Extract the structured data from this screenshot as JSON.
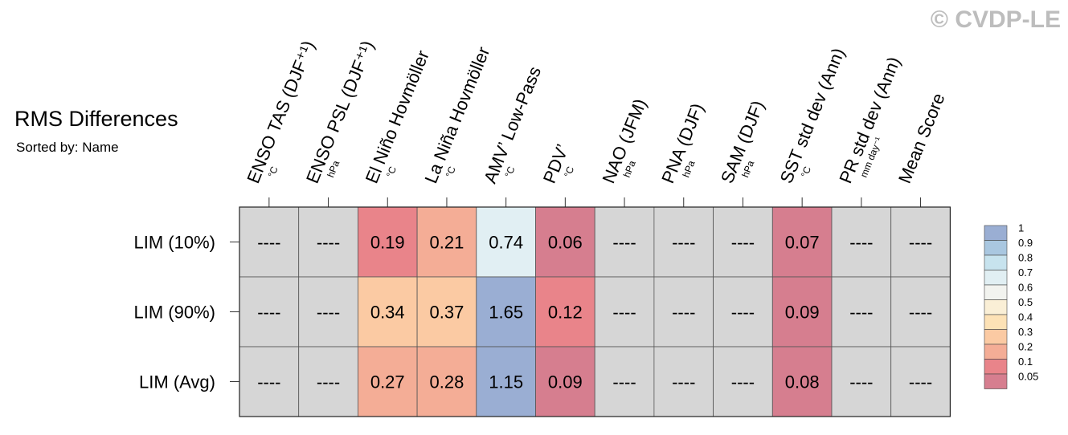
{
  "watermark": "© CVDP-LE",
  "chart_data": {
    "type": "heatmap",
    "title": "RMS Differences",
    "subtitle": "Sorted by: Name",
    "columns": [
      {
        "name": "ENSO TAS (DJF⁺¹)",
        "unit": "°C"
      },
      {
        "name": "ENSO PSL (DJF⁺¹)",
        "unit": "hPa"
      },
      {
        "name": "El Niño Hovmöller",
        "unit": "°C"
      },
      {
        "name": "La Niña Hovmöller",
        "unit": "°C"
      },
      {
        "name": "AMV’ Low-Pass",
        "unit": "°C"
      },
      {
        "name": "PDV’",
        "unit": "°C"
      },
      {
        "name": "NAO (JFM)",
        "unit": "hPa"
      },
      {
        "name": "PNA (DJF)",
        "unit": "hPa"
      },
      {
        "name": "SAM (DJF)",
        "unit": "hPa"
      },
      {
        "name": "SST std dev (Ann)",
        "unit": "°C"
      },
      {
        "name": "PR std dev (Ann)",
        "unit": "mm day⁻¹"
      },
      {
        "name": "Mean Score",
        "unit": ""
      }
    ],
    "rows": [
      "LIM (10%)",
      "LIM (90%)",
      "LIM (Avg)"
    ],
    "values": [
      [
        null,
        null,
        0.19,
        0.21,
        0.74,
        0.06,
        null,
        null,
        null,
        0.07,
        null,
        null
      ],
      [
        null,
        null,
        0.34,
        0.37,
        1.65,
        0.12,
        null,
        null,
        null,
        0.09,
        null,
        null
      ],
      [
        null,
        null,
        0.27,
        0.28,
        1.15,
        0.09,
        null,
        null,
        null,
        0.08,
        null,
        null
      ]
    ],
    "missing_label": "----",
    "missing_color": "#d6d6d6",
    "colorbar": {
      "labels": [
        "1",
        "0.9",
        "0.8",
        "0.7",
        "0.6",
        "0.5",
        "0.4",
        "0.3",
        "0.2",
        "0.1",
        "0.05"
      ],
      "colors": [
        "#9aaed3",
        "#a9c7e0",
        "#c7e3ee",
        "#e1eff3",
        "#f2f3ef",
        "#faefd6",
        "#fde2b6",
        "#fbcaa3",
        "#f4ad96",
        "#e9848a",
        "#d67e8f"
      ]
    }
  }
}
